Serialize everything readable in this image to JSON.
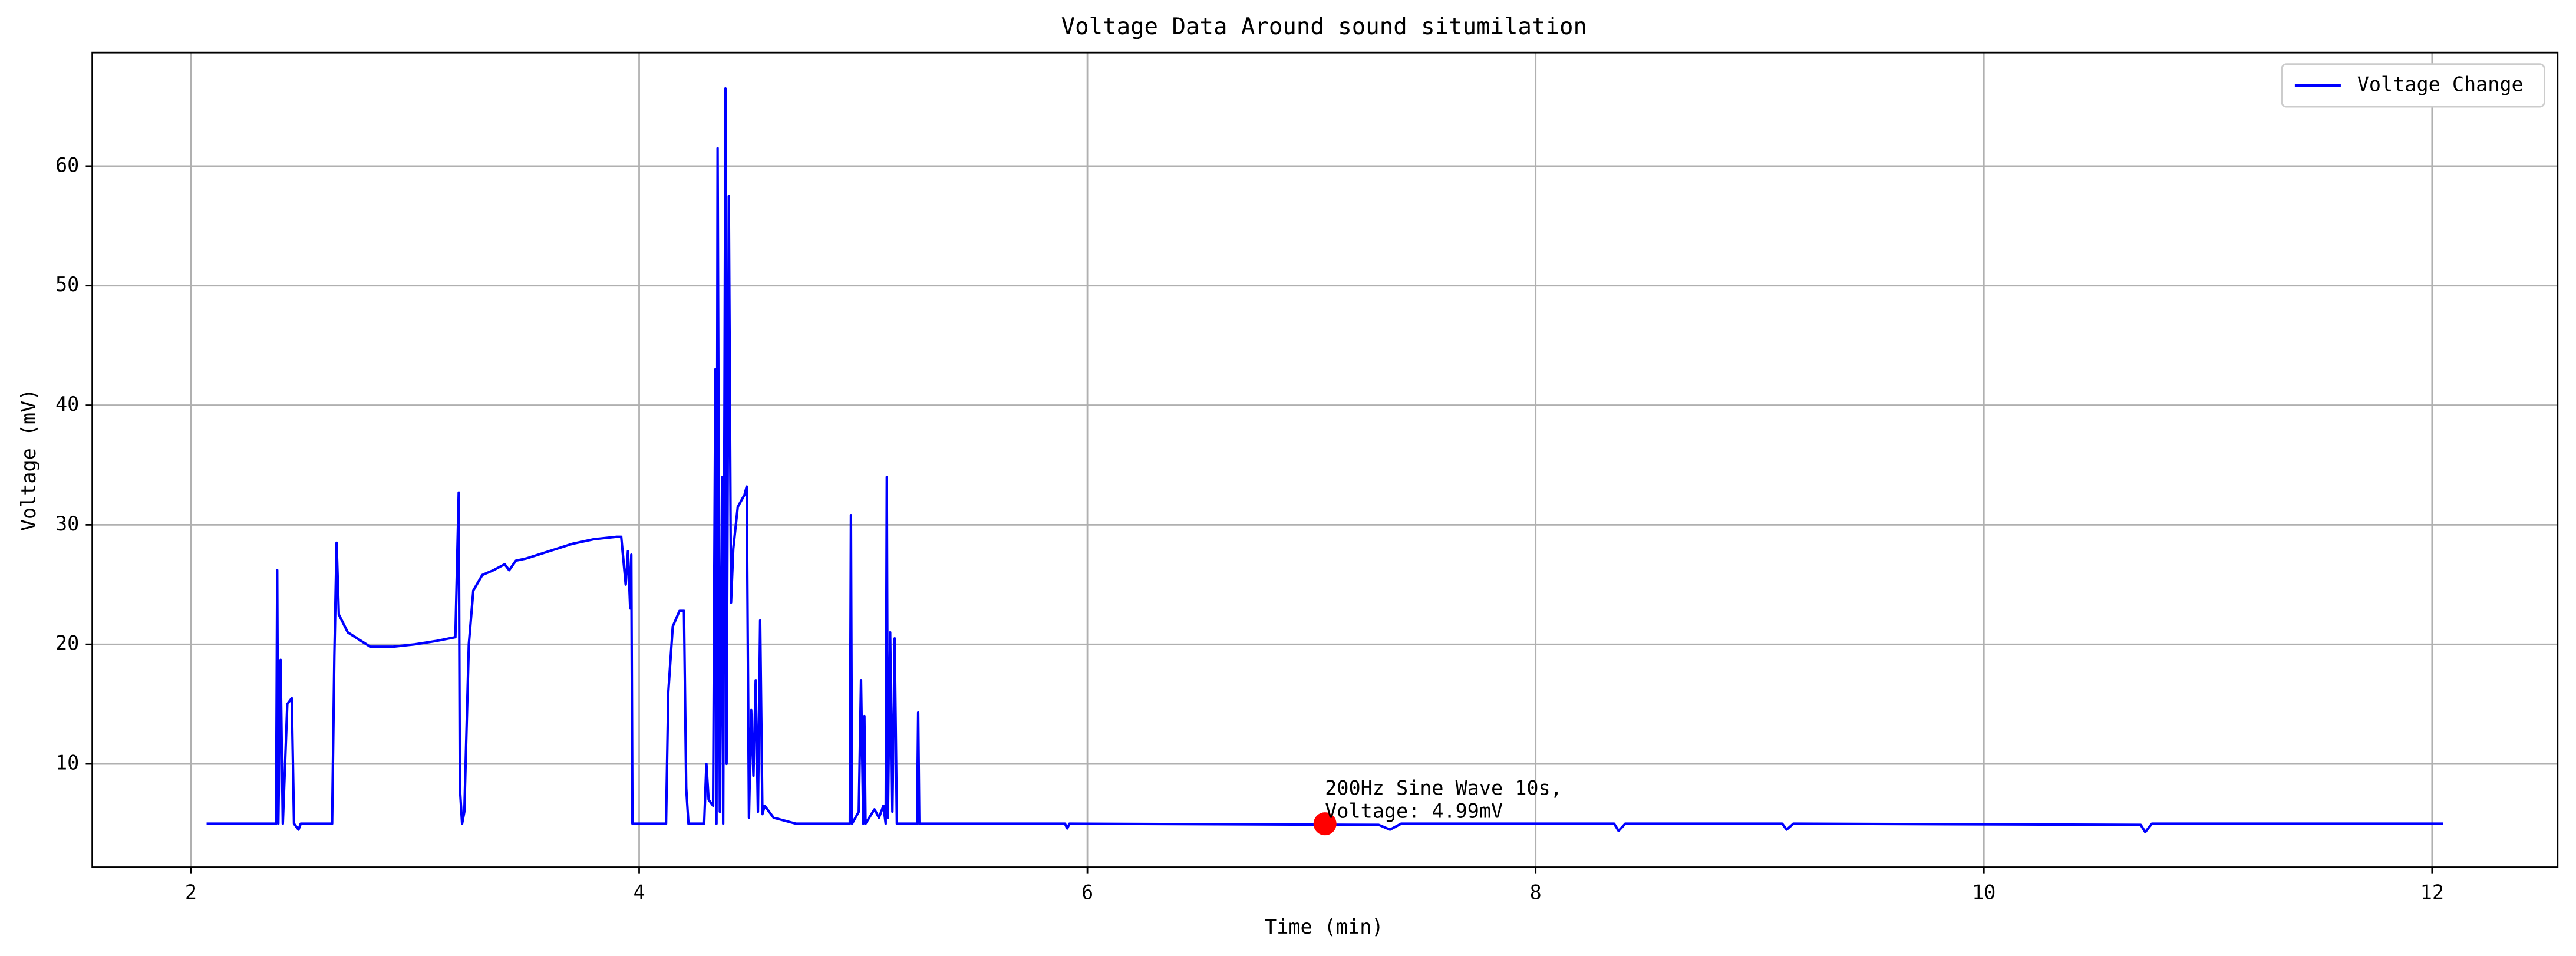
{
  "chart_data": {
    "type": "line",
    "title": "Voltage Data Around sound situmilation",
    "xlabel": "Time (min)",
    "ylabel": "Voltage (mV)",
    "xlim": [
      1.56,
      12.56
    ],
    "ylim": [
      1.35,
      69.5
    ],
    "xticks": [
      2,
      4,
      6,
      8,
      10,
      12
    ],
    "yticks": [
      10,
      20,
      30,
      40,
      50,
      60
    ],
    "grid": true,
    "legend": "upper right",
    "series": [
      {
        "name": "Voltage Change",
        "color": "#0000ff",
        "x": [
          2.07,
          2.38,
          2.385,
          2.39,
          2.4,
          2.41,
          2.43,
          2.45,
          2.46,
          2.48,
          2.49,
          2.63,
          2.64,
          2.65,
          2.66,
          2.7,
          2.8,
          2.9,
          3.0,
          3.1,
          3.18,
          3.195,
          3.2,
          3.21,
          3.22,
          3.24,
          3.26,
          3.3,
          3.35,
          3.4,
          3.42,
          3.45,
          3.5,
          3.6,
          3.7,
          3.8,
          3.9,
          3.92,
          3.94,
          3.95,
          3.96,
          3.965,
          3.97,
          4.12,
          4.13,
          4.15,
          4.18,
          4.2,
          4.21,
          4.22,
          4.29,
          4.3,
          4.31,
          4.33,
          4.34,
          4.345,
          4.35,
          4.36,
          4.37,
          4.375,
          4.385,
          4.39,
          4.4,
          4.41,
          4.42,
          4.44,
          4.47,
          4.48,
          4.49,
          4.5,
          4.51,
          4.52,
          4.53,
          4.54,
          4.55,
          4.56,
          4.6,
          4.7,
          4.94,
          4.945,
          4.95,
          4.98,
          4.99,
          5.0,
          5.005,
          5.01,
          5.05,
          5.07,
          5.09,
          5.1,
          5.105,
          5.11,
          5.12,
          5.13,
          5.14,
          5.15,
          5.24,
          5.245,
          5.25,
          5.9,
          5.91,
          5.92,
          7.3,
          7.35,
          7.4,
          8.35,
          8.37,
          8.4,
          9.1,
          9.12,
          9.15,
          10.7,
          10.72,
          10.75,
          12.05
        ],
        "values": [
          5,
          5,
          26.2,
          5,
          18.7,
          5,
          15,
          15.5,
          5,
          4.5,
          5,
          5,
          19,
          28.5,
          22.5,
          21,
          19.8,
          19.8,
          20,
          20.3,
          20.6,
          32.7,
          8,
          5,
          6,
          20,
          24.5,
          25.8,
          26.2,
          26.7,
          26.2,
          27,
          27.2,
          27.8,
          28.4,
          28.8,
          29,
          29,
          25,
          27.8,
          23,
          27.5,
          5,
          5,
          16,
          21.5,
          22.8,
          22.8,
          8,
          5,
          5,
          10,
          7,
          6.5,
          43,
          5,
          61.5,
          6,
          34,
          5,
          66.5,
          10,
          57.5,
          23.5,
          28,
          31.5,
          32.5,
          33.2,
          5.5,
          14.5,
          9,
          17,
          6,
          22,
          5.8,
          6.5,
          5.5,
          5,
          5,
          30.8,
          5,
          6,
          17,
          5,
          14,
          5,
          6.2,
          5.5,
          6.5,
          5,
          34,
          5.5,
          21,
          6,
          20.5,
          5,
          5,
          14.3,
          5,
          5,
          4.6,
          5,
          4.9,
          4.5,
          5,
          5,
          4.4,
          5,
          5,
          4.5,
          5,
          4.9,
          4.3,
          5,
          5
        ]
      }
    ],
    "annotation": {
      "x": 7.06,
      "y": 4.99,
      "color": "#ff0000",
      "text": [
        "200Hz Sine Wave 10s,",
        "Voltage: 4.99mV"
      ]
    }
  }
}
